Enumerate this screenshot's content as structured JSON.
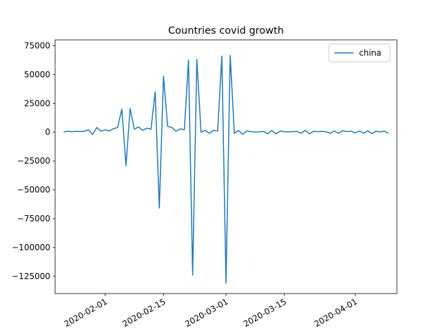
{
  "chart_data": {
    "type": "line",
    "title": "Countries covid growth",
    "xlabel": "",
    "ylabel": "",
    "x_type": "date",
    "xlim": [
      "2020-01-20",
      "2020-04-11"
    ],
    "ylim": [
      -140000,
      80000
    ],
    "xticks": [
      "2020-02-01",
      "2020-02-15",
      "2020-03-01",
      "2020-03-15",
      "2020-04-01"
    ],
    "yticks": [
      75000,
      50000,
      25000,
      0,
      -25000,
      -50000,
      -75000,
      -100000,
      -125000
    ],
    "ytick_labels": [
      "75000",
      "50000",
      "25000",
      "0",
      "−25000",
      "−50000",
      "−75000",
      "−100000",
      "−125000"
    ],
    "grid": false,
    "legend_position": "top-right",
    "series": [
      {
        "name": "china",
        "color": "#1f77b4",
        "x": [
          "2020-01-22",
          "2020-01-23",
          "2020-01-24",
          "2020-01-25",
          "2020-01-26",
          "2020-01-27",
          "2020-01-28",
          "2020-01-29",
          "2020-01-30",
          "2020-01-31",
          "2020-02-01",
          "2020-02-02",
          "2020-02-03",
          "2020-02-04",
          "2020-02-05",
          "2020-02-06",
          "2020-02-07",
          "2020-02-08",
          "2020-02-09",
          "2020-02-10",
          "2020-02-11",
          "2020-02-12",
          "2020-02-13",
          "2020-02-14",
          "2020-02-15",
          "2020-02-16",
          "2020-02-17",
          "2020-02-18",
          "2020-02-19",
          "2020-02-20",
          "2020-02-21",
          "2020-02-22",
          "2020-02-23",
          "2020-02-24",
          "2020-02-25",
          "2020-02-26",
          "2020-02-27",
          "2020-02-28",
          "2020-02-29",
          "2020-03-01",
          "2020-03-02",
          "2020-03-03",
          "2020-03-04",
          "2020-03-05",
          "2020-03-06",
          "2020-03-07",
          "2020-03-08",
          "2020-03-09",
          "2020-03-10",
          "2020-03-11",
          "2020-03-12",
          "2020-03-13",
          "2020-03-14",
          "2020-03-15",
          "2020-03-16",
          "2020-03-17",
          "2020-03-18",
          "2020-03-19",
          "2020-03-20",
          "2020-03-21",
          "2020-03-22",
          "2020-03-23",
          "2020-03-24",
          "2020-03-25",
          "2020-03-26",
          "2020-03-27",
          "2020-03-28",
          "2020-03-29",
          "2020-03-30",
          "2020-03-31",
          "2020-04-01",
          "2020-04-02",
          "2020-04-03",
          "2020-04-04",
          "2020-04-05",
          "2020-04-06",
          "2020-04-07",
          "2020-04-08",
          "2020-04-09"
        ],
        "y": [
          0,
          800,
          300,
          600,
          500,
          700,
          2000,
          -2000,
          4000,
          800,
          2000,
          1000,
          3000,
          4000,
          20000,
          -29000,
          20500,
          2500,
          4500,
          1500,
          3500,
          2500,
          35000,
          -66000,
          48500,
          5000,
          4000,
          800,
          2800,
          2000,
          62500,
          -124000,
          63000,
          0,
          1500,
          -1000,
          1500,
          1000,
          66000,
          -131000,
          66500,
          -1000,
          1500,
          -2000,
          1000,
          300,
          0,
          200,
          600,
          -1500,
          1500,
          -1500,
          1000,
          300,
          200,
          400,
          600,
          -1000,
          1500,
          -1500,
          800,
          300,
          600,
          300,
          -1000,
          1000,
          -1000,
          1200,
          500,
          800,
          -700,
          1000,
          -1000,
          1200,
          -1200,
          800,
          200,
          800,
          -1000
        ]
      }
    ]
  }
}
